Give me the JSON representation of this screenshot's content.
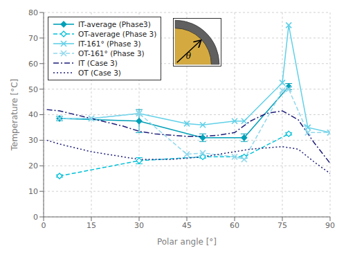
{
  "chart_data": {
    "type": "line",
    "xlabel": "Polar angle [°]",
    "ylabel": "Temperature [°C]",
    "xlim": [
      0,
      90
    ],
    "ylim": [
      0,
      80
    ],
    "xticks": [
      0,
      15,
      30,
      45,
      60,
      75,
      90
    ],
    "yticks": [
      0,
      10,
      20,
      30,
      40,
      50,
      60,
      70,
      80
    ],
    "grid": true,
    "legend": "upper left",
    "annotations": [
      "θ"
    ],
    "series": [
      {
        "name": "IT-average (Phase3)",
        "color": "#00A0B8",
        "marker": "diamond",
        "line_style": "solid",
        "x": [
          5,
          30,
          50,
          63,
          77
        ],
        "values": [
          38.5,
          37.5,
          31.0,
          31.0,
          51.0
        ],
        "yerr": [
          0.8,
          4.5,
          1.5,
          1.5,
          1.2
        ]
      },
      {
        "name": "OT-average (Phase 3)",
        "color": "#00C0D8",
        "marker": "diamond_open",
        "line_style": "dashed",
        "x": [
          5,
          30,
          50,
          63,
          77
        ],
        "values": [
          16.0,
          22.0,
          23.5,
          23.5,
          32.5
        ],
        "yerr": [
          0.5,
          1.2,
          0.5,
          0.5,
          0.5
        ]
      },
      {
        "name": "IT-161° (Phase 3)",
        "color": "#60D0E8",
        "marker": "x",
        "line_style": "solid",
        "x": [
          5,
          15,
          30,
          45,
          50,
          60,
          63,
          75,
          77,
          83,
          90
        ],
        "values": [
          38.5,
          38.5,
          40.5,
          36.5,
          36.0,
          37.5,
          37.5,
          52.5,
          75.0,
          35.0,
          33.0
        ]
      },
      {
        "name": "OT-161° (Phase 3)",
        "color": "#90D8EC",
        "marker": "x",
        "line_style": "dashed",
        "x": [
          5,
          15,
          30,
          45,
          50,
          60,
          63,
          75,
          77,
          83,
          90
        ],
        "values": [
          38.5,
          38.5,
          40.5,
          24.5,
          25.0,
          23.5,
          22.5,
          49.5,
          50.0,
          33.0,
          33.0
        ]
      },
      {
        "name": "IT (Case 3)",
        "color": "#1C1C7A",
        "marker": "none",
        "line_style": "dashdot",
        "x": [
          1,
          5,
          10,
          15,
          20,
          25,
          30,
          35,
          40,
          45,
          50,
          55,
          60,
          65,
          70,
          75,
          80,
          85,
          90
        ],
        "values": [
          42.0,
          41.5,
          40.0,
          38.5,
          37.0,
          35.5,
          33.5,
          32.5,
          32.0,
          31.5,
          31.5,
          32.0,
          33.0,
          37.5,
          40.5,
          41.5,
          38.0,
          29.0,
          21.0
        ]
      },
      {
        "name": "OT (Case 3)",
        "color": "#1C1C7A",
        "marker": "none",
        "line_style": "dotted",
        "x": [
          1,
          5,
          10,
          15,
          20,
          25,
          30,
          35,
          40,
          45,
          50,
          55,
          60,
          65,
          70,
          75,
          80,
          85,
          90
        ],
        "values": [
          30.0,
          28.5,
          27.0,
          25.5,
          24.5,
          23.5,
          22.5,
          22.5,
          22.5,
          23.0,
          23.5,
          24.5,
          25.5,
          26.5,
          27.0,
          27.5,
          26.5,
          21.5,
          17.0
        ]
      }
    ]
  }
}
